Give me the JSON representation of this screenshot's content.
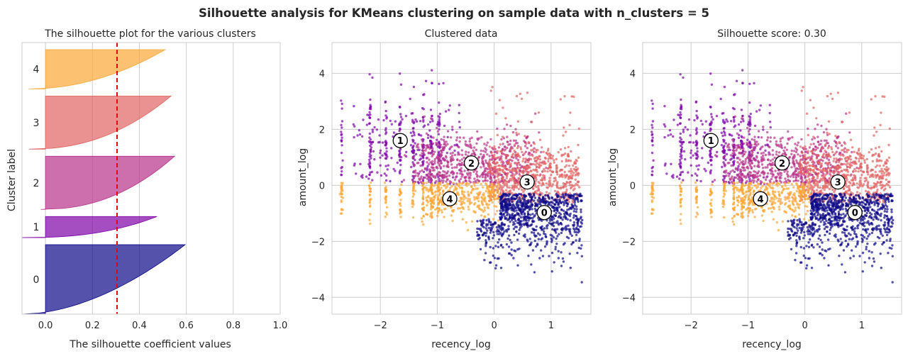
{
  "suptitle": "Silhouette analysis for KMeans clustering on sample data with n_clusters = 5",
  "colors": {
    "cluster_0": "#0d0887",
    "cluster_1": "#7e03a8",
    "cluster_2": "#b83289",
    "cluster_3": "#e16462",
    "cluster_4": "#fca636",
    "average_line": "#e8000b",
    "grid": "#cccccc",
    "frame": "#cccccc",
    "text": "#262626"
  },
  "chart_data": [
    {
      "type": "area",
      "title": "The silhouette plot for the various clusters",
      "xlabel": "The silhouette coefficient values",
      "ylabel": "Cluster label",
      "xlim": [
        -0.1,
        1.0
      ],
      "xticks": [
        "0.0",
        "0.2",
        "0.4",
        "0.6",
        "0.8",
        "1.0"
      ],
      "xtick_values": [
        0,
        0.2,
        0.4,
        0.6,
        0.8,
        1.0
      ],
      "grid": true,
      "average_silhouette": 0.305,
      "clusters": [
        {
          "label": "0",
          "size": 1150,
          "min": -0.1,
          "max": 0.595,
          "curve": 0.55
        },
        {
          "label": "1",
          "size": 350,
          "min": -0.1,
          "max": 0.475,
          "curve": 0.4
        },
        {
          "label": "2",
          "size": 880,
          "min": -0.02,
          "max": 0.55,
          "curve": 0.45
        },
        {
          "label": "3",
          "size": 880,
          "min": -0.07,
          "max": 0.535,
          "curve": 0.45
        },
        {
          "label": "4",
          "size": 650,
          "min": -0.07,
          "max": 0.51,
          "curve": 0.5
        }
      ]
    },
    {
      "type": "scatter",
      "title": "Clustered data",
      "xlabel": "recency_log",
      "ylabel": "amount_log",
      "xlim": [
        -2.85,
        1.7
      ],
      "ylim": [
        -4.6,
        5.1
      ],
      "xticks": [
        "−2",
        "−1",
        "0",
        "1"
      ],
      "xtick_values": [
        -2,
        -1,
        0,
        1
      ],
      "yticks": [
        "−4",
        "−2",
        "0",
        "2",
        "4"
      ],
      "ytick_values": [
        -4,
        -2,
        0,
        2,
        4
      ],
      "grid": true,
      "centers": [
        {
          "label": "0",
          "x": 0.88,
          "y": -0.97
        },
        {
          "label": "1",
          "x": -1.65,
          "y": 1.6
        },
        {
          "label": "2",
          "x": -0.4,
          "y": 0.8
        },
        {
          "label": "3",
          "x": 0.58,
          "y": 0.12
        },
        {
          "label": "4",
          "x": -0.78,
          "y": -0.48
        }
      ]
    },
    {
      "type": "scatter",
      "title": "Silhouette score: 0.30",
      "xlabel": "recency_log",
      "ylabel": "amount_log",
      "xlim": [
        -2.85,
        1.7
      ],
      "ylim": [
        -4.6,
        5.1
      ],
      "xticks": [
        "−2",
        "−1",
        "0",
        "1"
      ],
      "xtick_values": [
        -2,
        -1,
        0,
        1
      ],
      "yticks": [
        "−4",
        "−2",
        "0",
        "2",
        "4"
      ],
      "ytick_values": [
        -4,
        -2,
        0,
        2,
        4
      ],
      "grid": true,
      "centers": [
        {
          "label": "0",
          "x": 0.88,
          "y": -0.97
        },
        {
          "label": "1",
          "x": -1.65,
          "y": 1.6
        },
        {
          "label": "2",
          "x": -0.4,
          "y": 0.8
        },
        {
          "label": "3",
          "x": 0.58,
          "y": 0.12
        },
        {
          "label": "4",
          "x": -0.78,
          "y": -0.48
        }
      ]
    }
  ]
}
